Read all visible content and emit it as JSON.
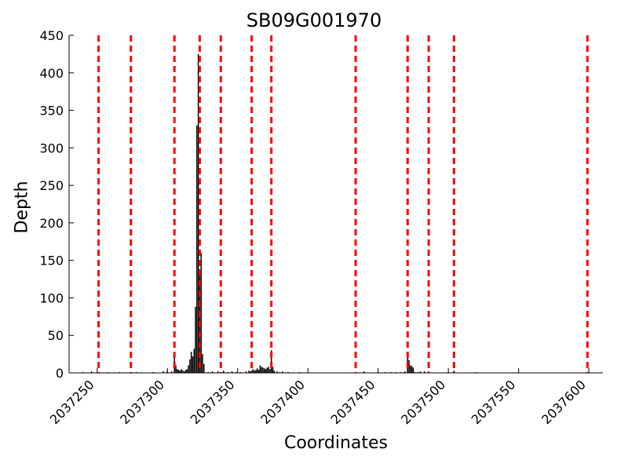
{
  "chart_data": {
    "type": "bar",
    "title": "SB09G001970",
    "xlabel": "Coordinates",
    "ylabel": "Depth",
    "xlim": [
      2037230,
      2037610
    ],
    "ylim": [
      0,
      450
    ],
    "xticks": [
      2037250,
      2037300,
      2037350,
      2037400,
      2037450,
      2037500,
      2037550,
      2037600
    ],
    "yticks": [
      0,
      50,
      100,
      150,
      200,
      250,
      300,
      350,
      400,
      450
    ],
    "grid": false,
    "bar_color": "#000000",
    "vline_color": "#ff0000",
    "vline_style": "dashed",
    "vlines": [
      2037251,
      2037274,
      2037305,
      2037323,
      2037338,
      2037360,
      2037374,
      2037434,
      2037471,
      2037486,
      2037504,
      2037599
    ],
    "bars": [
      {
        "x": 2037240,
        "y": 1
      },
      {
        "x": 2037246,
        "y": 2
      },
      {
        "x": 2037258,
        "y": 1
      },
      {
        "x": 2037266,
        "y": 1
      },
      {
        "x": 2037278,
        "y": 1
      },
      {
        "x": 2037290,
        "y": 1
      },
      {
        "x": 2037297,
        "y": 2
      },
      {
        "x": 2037300,
        "y": 3
      },
      {
        "x": 2037303,
        "y": 2
      },
      {
        "x": 2037305,
        "y": 20
      },
      {
        "x": 2037306,
        "y": 10
      },
      {
        "x": 2037307,
        "y": 5
      },
      {
        "x": 2037308,
        "y": 4
      },
      {
        "x": 2037309,
        "y": 3
      },
      {
        "x": 2037310,
        "y": 5
      },
      {
        "x": 2037311,
        "y": 3
      },
      {
        "x": 2037312,
        "y": 2
      },
      {
        "x": 2037313,
        "y": 4
      },
      {
        "x": 2037314,
        "y": 5
      },
      {
        "x": 2037315,
        "y": 10
      },
      {
        "x": 2037316,
        "y": 18
      },
      {
        "x": 2037317,
        "y": 28
      },
      {
        "x": 2037318,
        "y": 22
      },
      {
        "x": 2037319,
        "y": 32
      },
      {
        "x": 2037320,
        "y": 88
      },
      {
        "x": 2037321,
        "y": 330
      },
      {
        "x": 2037322,
        "y": 425
      },
      {
        "x": 2037323,
        "y": 138
      },
      {
        "x": 2037324,
        "y": 160
      },
      {
        "x": 2037325,
        "y": 25
      },
      {
        "x": 2037326,
        "y": 12
      },
      {
        "x": 2037329,
        "y": 1
      },
      {
        "x": 2037332,
        "y": 2
      },
      {
        "x": 2037336,
        "y": 2
      },
      {
        "x": 2037340,
        "y": 3
      },
      {
        "x": 2037343,
        "y": 1
      },
      {
        "x": 2037346,
        "y": 2
      },
      {
        "x": 2037349,
        "y": 1
      },
      {
        "x": 2037352,
        "y": 1
      },
      {
        "x": 2037356,
        "y": 2
      },
      {
        "x": 2037358,
        "y": 3
      },
      {
        "x": 2037359,
        "y": 2
      },
      {
        "x": 2037360,
        "y": 3
      },
      {
        "x": 2037361,
        "y": 5
      },
      {
        "x": 2037362,
        "y": 3
      },
      {
        "x": 2037363,
        "y": 4
      },
      {
        "x": 2037364,
        "y": 6
      },
      {
        "x": 2037365,
        "y": 4
      },
      {
        "x": 2037366,
        "y": 10
      },
      {
        "x": 2037367,
        "y": 8
      },
      {
        "x": 2037368,
        "y": 7
      },
      {
        "x": 2037369,
        "y": 6
      },
      {
        "x": 2037370,
        "y": 5
      },
      {
        "x": 2037371,
        "y": 7
      },
      {
        "x": 2037372,
        "y": 8
      },
      {
        "x": 2037373,
        "y": 5
      },
      {
        "x": 2037374,
        "y": 30
      },
      {
        "x": 2037375,
        "y": 8
      },
      {
        "x": 2037376,
        "y": 3
      },
      {
        "x": 2037378,
        "y": 2
      },
      {
        "x": 2037380,
        "y": 1
      },
      {
        "x": 2037382,
        "y": 2
      },
      {
        "x": 2037386,
        "y": 1
      },
      {
        "x": 2037394,
        "y": 1
      },
      {
        "x": 2037440,
        "y": 2
      },
      {
        "x": 2037450,
        "y": 1
      },
      {
        "x": 2037455,
        "y": 1
      },
      {
        "x": 2037459,
        "y": 1
      },
      {
        "x": 2037463,
        "y": 1
      },
      {
        "x": 2037466,
        "y": 1
      },
      {
        "x": 2037469,
        "y": 2
      },
      {
        "x": 2037471,
        "y": 22
      },
      {
        "x": 2037472,
        "y": 17
      },
      {
        "x": 2037473,
        "y": 10
      },
      {
        "x": 2037474,
        "y": 9
      },
      {
        "x": 2037475,
        "y": 7
      },
      {
        "x": 2037476,
        "y": 1
      },
      {
        "x": 2037478,
        "y": 1
      },
      {
        "x": 2037480,
        "y": 2
      },
      {
        "x": 2037483,
        "y": 2
      },
      {
        "x": 2037486,
        "y": 2
      },
      {
        "x": 2037500,
        "y": 1
      },
      {
        "x": 2037504,
        "y": 3
      },
      {
        "x": 2037520,
        "y": 1
      }
    ]
  }
}
